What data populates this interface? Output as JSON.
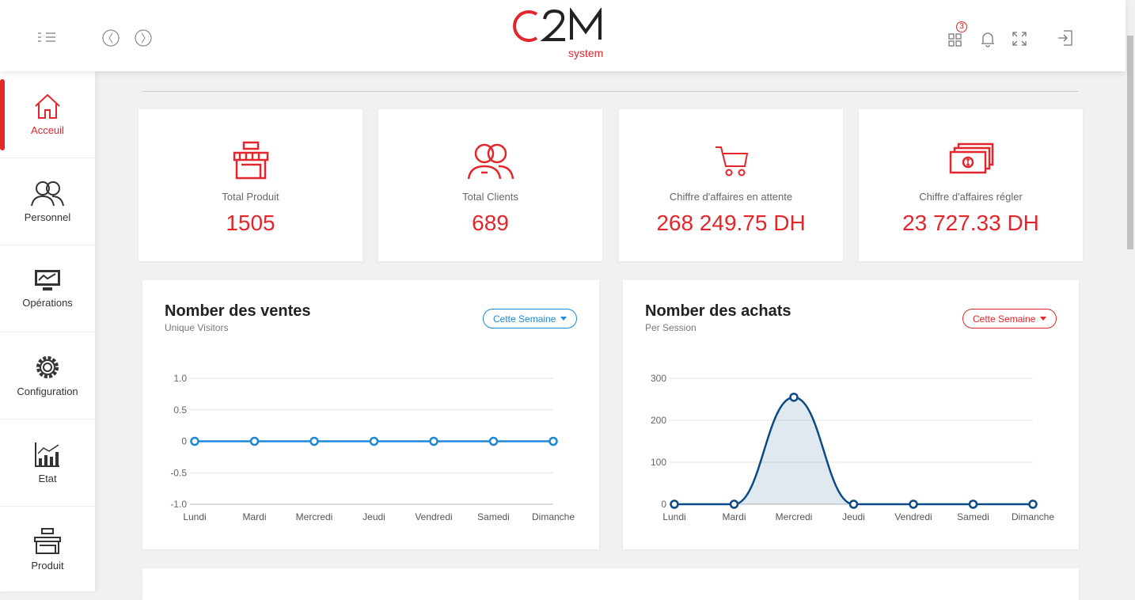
{
  "header": {
    "logo_text": "C2M",
    "logo_sub": "system",
    "notification_count": "3"
  },
  "sidebar": {
    "items": [
      {
        "label": "Acceuil",
        "icon": "home-icon"
      },
      {
        "label": "Personnel",
        "icon": "users-icon"
      },
      {
        "label": "Opérations",
        "icon": "monitor-icon"
      },
      {
        "label": "Configuration",
        "icon": "gear-icon"
      },
      {
        "label": "Etat",
        "icon": "chart-icon"
      },
      {
        "label": "Produit",
        "icon": "shop-icon"
      }
    ]
  },
  "stats": [
    {
      "label": "Total Produit",
      "value": "1505",
      "icon": "shop-icon"
    },
    {
      "label": "Total Clients",
      "value": "689",
      "icon": "clients-icon"
    },
    {
      "label": "Chiffre d'affaires en attente",
      "value": "268 249.75 DH",
      "icon": "cart-icon"
    },
    {
      "label": "Chiffre d'affaires régler",
      "value": "23 727.33 DH",
      "icon": "money-icon"
    }
  ],
  "colors": {
    "accent": "#e3262b",
    "ventes_line": "#1e88d8",
    "achats_line": "#0b4a86"
  },
  "chart_data": [
    {
      "type": "line",
      "title": "Nomber des ventes",
      "subtitle": "Unique Visitors",
      "filter": "Cette Semaine",
      "categories": [
        "Lundi",
        "Mardi",
        "Mercredi",
        "Jeudi",
        "Vendredi",
        "Samedi",
        "Dimanche"
      ],
      "values": [
        0,
        0,
        0,
        0,
        0,
        0,
        0
      ],
      "ylim": [
        -1,
        1
      ],
      "yticks": [
        "1.0",
        "0.5",
        "0",
        "-0.5",
        "-1.0"
      ],
      "ytick_values": [
        1,
        0.5,
        0,
        -0.5,
        -1
      ],
      "grid": true
    },
    {
      "type": "area",
      "title": "Nomber des achats",
      "subtitle": "Per Session",
      "filter": "Cette Semaine",
      "categories": [
        "Lundi",
        "Mardi",
        "Mercredi",
        "Jeudi",
        "Vendredi",
        "Samedi",
        "Dimanche"
      ],
      "values": [
        0,
        0,
        255,
        0,
        0,
        0,
        0
      ],
      "ylim": [
        0,
        300
      ],
      "yticks": [
        "300",
        "200",
        "100",
        "0"
      ],
      "ytick_values": [
        300,
        200,
        100,
        0
      ],
      "grid": true
    }
  ]
}
